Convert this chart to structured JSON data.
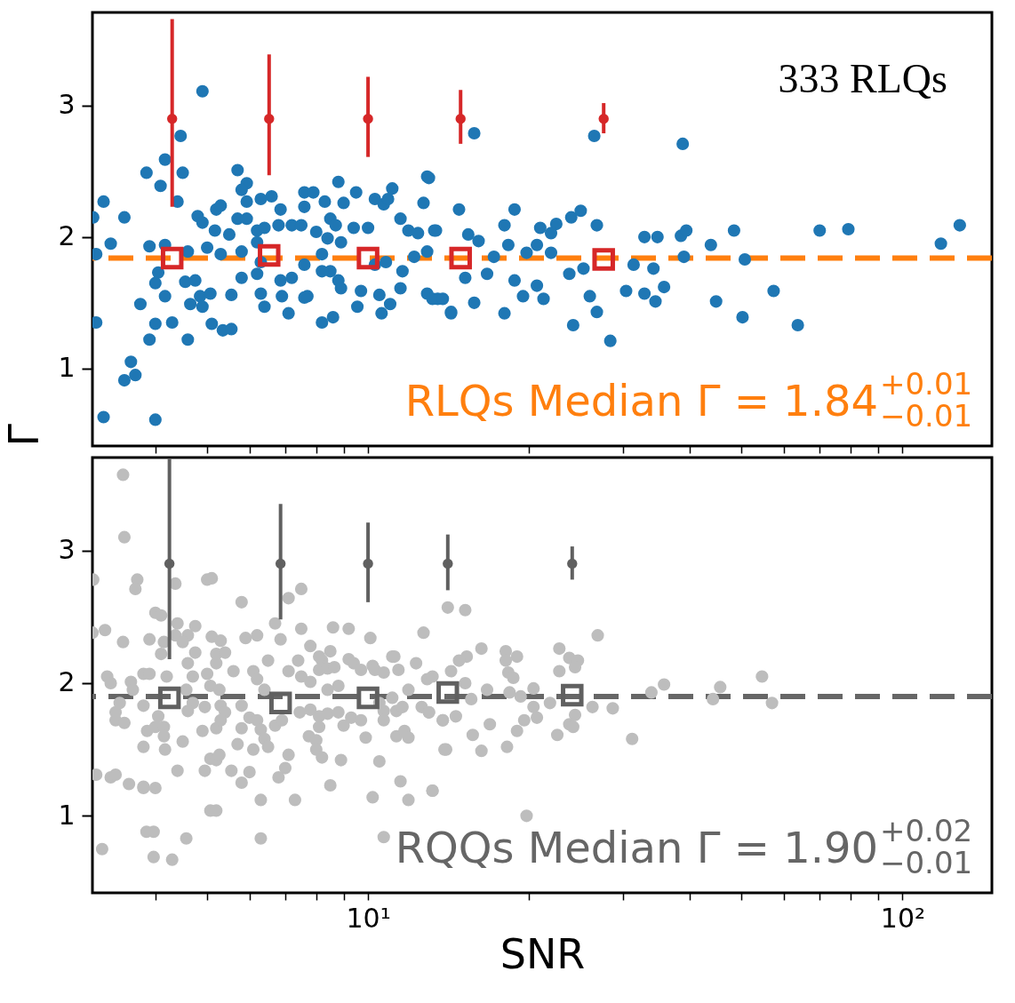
{
  "chart_data": [
    {
      "type": "scatter",
      "ylabel": "Γ",
      "log": "x",
      "xlim": [
        3.05,
        147
      ],
      "ylim": [
        0.41,
        3.71
      ],
      "tick_labels": "y",
      "grid": false,
      "xticks": [
        {
          "value": 4,
          "label": null
        },
        {
          "value": 5,
          "label": null
        },
        {
          "value": 6,
          "label": null
        },
        {
          "value": 7,
          "label": null
        },
        {
          "value": 8,
          "label": null
        },
        {
          "value": 9,
          "label": null
        },
        {
          "value": 10,
          "label": null
        },
        {
          "value": 20,
          "label": null
        },
        {
          "value": 30,
          "label": null
        },
        {
          "value": 40,
          "label": null
        },
        {
          "value": 50,
          "label": null
        },
        {
          "value": 60,
          "label": null
        },
        {
          "value": 70,
          "label": null
        },
        {
          "value": 80,
          "label": null
        },
        {
          "value": 90,
          "label": null
        },
        {
          "value": 100,
          "label": null
        }
      ],
      "yticks": [
        1,
        2,
        3
      ],
      "annotations": [
        "333 RLQs",
        "RLQs Median Γ = 1.84$^{+0.01}$$_{−0.01}$"
      ],
      "ref_lines": [
        {
          "axis": "y",
          "value": 1.84,
          "color": "#ff7f0e",
          "line_style": "dashed"
        }
      ],
      "series": [
        {
          "marker": "circle",
          "color": "#1f77b4",
          "x": [
            4.9,
            4.46,
            4.17,
            3.85,
            4.09,
            4.5,
            4.4,
            3.2,
            3.5,
            3.06,
            3.3,
            3.1,
            3.9,
            4.17,
            4.05,
            4.0,
            4.17,
            3.75,
            3.1,
            4.0,
            4.3,
            3.9,
            4.6,
            3.6,
            3.5,
            3.67,
            3.2,
            4.0,
            4.8,
            5.2,
            5.3,
            4.9,
            5.17,
            5.5,
            4.6,
            5.0,
            5.3,
            4.55,
            4.75,
            4.65,
            4.85,
            5.07,
            4.9,
            5.1,
            5.35,
            5.55,
            5.7,
            5.93,
            5.8,
            5.7,
            5.93,
            5.93,
            6.3,
            6.6,
            6.86,
            6.2,
            6.4,
            6.8,
            7.2,
            7.5,
            6.2,
            5.8,
            6.3,
            6.2,
            6.3,
            6.4,
            5.55,
            5.8,
            6.9,
            7.1,
            6.86,
            7.2,
            7.6,
            7.7,
            7.6,
            7.9,
            7.6,
            8.3,
            8.8,
            9.0,
            8.5,
            8.7,
            8.0,
            8.4,
            8.9,
            9.4,
            10.0,
            9.5,
            10.3,
            10.7,
            11.1,
            10.9,
            8.2,
            8.5,
            8.8,
            8.9,
            8.2,
            7.6,
            8.2,
            8.6,
            9.55,
            9.7,
            10.5,
            10.6,
            11.0,
            10.3,
            10.8,
            11.5,
            11.9,
            12.4,
            13.3,
            12.7,
            12.9,
            11.6,
            11.5,
            12.9,
            13.5,
            14.3,
            12.2,
            12.9,
            15.8,
            26.5,
            38.8,
            13.0,
            14.8,
            13.4,
            18.8,
            18.0,
            21.0,
            22.5,
            22.0,
            24.0,
            25.0,
            26.8,
            32.9,
            34.8,
            38.5,
            39.4,
            43.8,
            48.4,
            70.0,
            79.2,
            118,
            128,
            50.7,
            39.0,
            34.2,
            31.4,
            35.8,
            30.4,
            32.9,
            34.5,
            44.8,
            57.4,
            50.2,
            63.7,
            26.8,
            28.4,
            24.2,
            26.0,
            18.0,
            14.3,
            15.8,
            13.2,
            13.8,
            19.5,
            21.3,
            15.2,
            16.7,
            18.8,
            20.7,
            23.8,
            25.3,
            17.2,
            19.8,
            22.0,
            18.3,
            20.7,
            15.4,
            16.1
          ],
          "values": [
            3.11,
            2.77,
            2.59,
            2.49,
            2.39,
            2.49,
            2.27,
            2.27,
            2.15,
            2.15,
            1.95,
            1.87,
            1.93,
            1.94,
            1.73,
            1.65,
            1.55,
            1.49,
            1.35,
            1.34,
            1.35,
            1.22,
            1.22,
            1.05,
            0.91,
            0.95,
            0.63,
            0.61,
            2.16,
            2.21,
            2.24,
            2.11,
            2.05,
            2.02,
            1.89,
            1.92,
            1.87,
            1.66,
            1.67,
            1.49,
            1.55,
            1.57,
            1.47,
            1.34,
            1.29,
            1.3,
            2.51,
            2.41,
            2.36,
            2.14,
            2.27,
            2.14,
            2.29,
            2.31,
            2.21,
            2.05,
            2.07,
            2.09,
            2.09,
            2.09,
            1.96,
            1.89,
            1.81,
            1.72,
            1.57,
            1.47,
            1.56,
            1.69,
            1.55,
            1.42,
            1.67,
            1.69,
            1.79,
            1.55,
            2.34,
            2.34,
            2.23,
            2.27,
            2.42,
            2.26,
            2.14,
            2.09,
            2.04,
            1.99,
            1.96,
            2.07,
            2.07,
            2.34,
            2.29,
            2.25,
            2.37,
            2.29,
            1.87,
            1.74,
            1.67,
            1.61,
            1.74,
            1.54,
            1.35,
            1.39,
            1.47,
            1.59,
            1.56,
            1.42,
            1.49,
            1.79,
            1.81,
            2.14,
            2.05,
            2.03,
            2.05,
            2.26,
            2.46,
            1.74,
            1.61,
            1.57,
            1.53,
            1.43,
            1.85,
            1.89,
            2.79,
            2.77,
            2.71,
            2.45,
            2.21,
            2.05,
            2.21,
            2.09,
            2.07,
            2.1,
            2.03,
            2.15,
            2.2,
            2.09,
            2.0,
            2.0,
            2.01,
            2.05,
            1.94,
            2.05,
            2.05,
            2.06,
            1.95,
            2.09,
            1.83,
            1.85,
            1.76,
            1.79,
            1.62,
            1.59,
            1.57,
            1.51,
            1.51,
            1.59,
            1.39,
            1.33,
            1.43,
            1.21,
            1.33,
            1.55,
            1.42,
            1.42,
            1.5,
            1.53,
            1.53,
            1.55,
            1.53,
            1.69,
            1.72,
            1.67,
            1.63,
            1.72,
            1.76,
            1.85,
            1.88,
            1.88,
            1.94,
            1.94,
            2.02,
            1.97
          ]
        },
        {
          "marker": "circle",
          "color": "#d62728",
          "x": [
            4.3,
            6.53,
            10.0,
            14.9,
            27.6
          ],
          "values": [
            2.9,
            2.9,
            2.9,
            2.9,
            2.9
          ],
          "errors": [
            [
              2.23,
              3.66
            ],
            [
              2.47,
              3.39
            ],
            [
              2.61,
              3.22
            ],
            [
              2.71,
              3.12
            ],
            [
              2.79,
              3.02
            ]
          ]
        },
        {
          "marker": "square",
          "color": "#d62728",
          "x": [
            4.3,
            6.53,
            10.0,
            14.9,
            27.6
          ],
          "values": [
            1.84,
            1.86,
            1.84,
            1.84,
            1.83
          ]
        }
      ]
    },
    {
      "type": "scatter",
      "xlabel": "SNR",
      "log": "x",
      "xlim": [
        3.05,
        147
      ],
      "ylim": [
        0.42,
        3.7
      ],
      "grid": false,
      "xticks": [
        {
          "value": 4,
          "label": null
        },
        {
          "value": 5,
          "label": null
        },
        {
          "value": 6,
          "label": null
        },
        {
          "value": 7,
          "label": null
        },
        {
          "value": 8,
          "label": null
        },
        {
          "value": 9,
          "label": null
        },
        {
          "value": 10,
          "label": "10¹"
        },
        {
          "value": 20,
          "label": null
        },
        {
          "value": 30,
          "label": null
        },
        {
          "value": 40,
          "label": null
        },
        {
          "value": 50,
          "label": null
        },
        {
          "value": 60,
          "label": null
        },
        {
          "value": 70,
          "label": null
        },
        {
          "value": 80,
          "label": null
        },
        {
          "value": 90,
          "label": null
        },
        {
          "value": 100,
          "label": "10²"
        }
      ],
      "yticks": [
        1,
        2,
        3
      ],
      "annotations": [
        "RQQs Median Γ = 1.90$^{+0.02}$$_{−0.01}$"
      ],
      "ref_lines": [
        {
          "axis": "y",
          "value": 1.9,
          "color": "#666666",
          "line_style": "dashed"
        }
      ],
      "series": [
        {
          "marker": "circle",
          "color": "#bdbdbd",
          "x": [
            3.48,
            3.5,
            3.06,
            3.7,
            3.67,
            5.0,
            5.1,
            4.36,
            5.8,
            4.0,
            4.1,
            3.22,
            3.05,
            3.48,
            3.9,
            4.4,
            4.36,
            4.6,
            4.75,
            4.5,
            4.15,
            4.1,
            5.1,
            5.3,
            5.2,
            5.4,
            4.75,
            4.6,
            5.2,
            5.6,
            4.7,
            5.0,
            3.8,
            3.9,
            3.25,
            3.3,
            3.6,
            3.63,
            4.2,
            3.43,
            3.37,
            3.37,
            3.5,
            3.8,
            4.57,
            4.7,
            4.6,
            4.95,
            5.07,
            5.27,
            5.3,
            5.4,
            5.2,
            5.3,
            3.86,
            4.0,
            4.15,
            4.05,
            4.15,
            3.8,
            4.17,
            4.5,
            4.9,
            3.1,
            3.3,
            3.37,
            3.57,
            3.8,
            3.8,
            4.0,
            4.4,
            4.95,
            5.07,
            5.2,
            5.27,
            3.85,
            3.97,
            3.18,
            3.97,
            4.3,
            4.57,
            5.07,
            5.2,
            5.55,
            5.7,
            5.8,
            6.0,
            5.8,
            5.8,
            5.9,
            6.2,
            6.7,
            6.86,
            6.1,
            6.2,
            6.5,
            6.4,
            6.0,
            6.2,
            6.3,
            6.4,
            6.5,
            6.1,
            6.7,
            6.9,
            7.1,
            7.0,
            6.8,
            6.3,
            6.3,
            7.3,
            7.1,
            7.5,
            7.5,
            7.8,
            7.4,
            7.1,
            7.5,
            7.8,
            8.1,
            8.2,
            8.1,
            8.5,
            8.6,
            9.2,
            7.45,
            7.8,
            7.75,
            8.0,
            8.0,
            8.2,
            8.1,
            8.1,
            8.4,
            8.8,
            9.0,
            9.3,
            8.8,
            8.4,
            8.4,
            8.65,
            9.2,
            9.4,
            8.9,
            8.5,
            9.7,
            10.1,
            10.2,
            10.3,
            10.7,
            11.1,
            11.2,
            11.4,
            12.3,
            12.7,
            9.7,
            9.9,
            10.5,
            10.7,
            10.7,
            11.1,
            11.3,
            11.6,
            11.9,
            11.3,
            11.7,
            11.9,
            10.5,
            11.5,
            10.2,
            11.9,
            10.7,
            13.2,
            12.6,
            13.0,
            12.9,
            13.2,
            13.8,
            14.0,
            14.1,
            15.2,
            26.9,
            16.3,
            18.1,
            19.0,
            22.8,
            15.3,
            14.8,
            23.8,
            24.7,
            18.1,
            18.3,
            18.7,
            14.3,
            15.2,
            22.8,
            24.4,
            16.7,
            18.4,
            20.4,
            19.3,
            35.8,
            33.9,
            45.6,
            54.6,
            57.0,
            44.2,
            15.6,
            20.4,
            21.9,
            26.3,
            28.7,
            13.0,
            13.8,
            14.6,
            16.9,
            19.6,
            20.7,
            24.4,
            23.8,
            24.2,
            15.7,
            19.0,
            22.6,
            31.2,
            13.9,
            16.3,
            18.2,
            13.2,
            19.8
          ],
          "values": [
            3.57,
            3.1,
            2.78,
            2.78,
            2.71,
            2.78,
            2.79,
            2.75,
            2.61,
            2.53,
            2.51,
            2.4,
            2.38,
            2.31,
            2.33,
            2.45,
            2.36,
            2.36,
            2.43,
            2.31,
            2.31,
            2.22,
            2.35,
            2.32,
            2.22,
            2.23,
            2.23,
            2.15,
            2.15,
            2.09,
            2.05,
            2.07,
            2.07,
            2.07,
            2.05,
            2.0,
            2.01,
            1.95,
            2.05,
            1.85,
            1.78,
            1.72,
            1.7,
            1.83,
            1.95,
            1.85,
            1.79,
            1.82,
            1.98,
            1.95,
            1.83,
            1.78,
            1.66,
            1.72,
            1.64,
            1.67,
            1.67,
            1.75,
            1.6,
            1.52,
            1.5,
            1.56,
            1.64,
            1.31,
            1.29,
            1.31,
            1.24,
            1.22,
            1.21,
            1.21,
            1.34,
            1.34,
            1.43,
            1.42,
            1.46,
            0.88,
            0.88,
            0.75,
            0.69,
            0.67,
            0.83,
            1.04,
            1.04,
            1.34,
            1.54,
            1.25,
            1.33,
            1.66,
            1.83,
            2.34,
            2.36,
            2.45,
            2.33,
            2.09,
            2.03,
            2.17,
            1.95,
            1.74,
            1.72,
            1.65,
            1.58,
            1.52,
            1.5,
            1.68,
            1.72,
            1.46,
            1.36,
            1.29,
            1.12,
            0.83,
            1.12,
            2.64,
            2.71,
            2.41,
            2.28,
            2.17,
            2.09,
            2.05,
            2.01,
            2.1,
            2.17,
            2.2,
            2.24,
            2.42,
            2.41,
            1.78,
            1.8,
            1.6,
            1.57,
            1.5,
            1.44,
            1.75,
            1.67,
            1.77,
            1.78,
            1.68,
            1.74,
            1.98,
            1.95,
            2.11,
            2.12,
            2.18,
            2.15,
            1.42,
            1.23,
            2.1,
            2.34,
            2.13,
            2.1,
            2.08,
            2.2,
            2.2,
            2.1,
            2.15,
            2.38,
            1.72,
            1.59,
            1.85,
            1.79,
            1.72,
            1.89,
            1.79,
            1.82,
            1.95,
            1.6,
            1.64,
            1.59,
            1.41,
            1.26,
            1.14,
            1.12,
            0.84,
            1.19,
            1.82,
            1.78,
            2.03,
            2.05,
            1.72,
            1.5,
            2.57,
            2.55,
            2.36,
            2.26,
            2.24,
            2.2,
            2.26,
            2.2,
            2.17,
            2.19,
            2.17,
            2.17,
            2.08,
            2.04,
            2.09,
            2.0,
            2.09,
            2.12,
            1.95,
            1.93,
            1.96,
            1.9,
            1.99,
            1.93,
            1.97,
            2.05,
            1.85,
            1.88,
            1.88,
            1.82,
            1.85,
            1.82,
            1.81,
            1.78,
            1.72,
            1.75,
            1.69,
            1.72,
            1.74,
            1.76,
            1.69,
            1.67,
            1.61,
            1.64,
            1.61,
            1.58,
            1.5,
            1.49,
            1.52,
            1.19,
            1.0
          ]
        },
        {
          "marker": "circle",
          "color": "#606060",
          "x": [
            4.25,
            6.86,
            10.0,
            14.1,
            24.1
          ],
          "values": [
            2.9,
            2.9,
            2.9,
            2.9,
            2.9
          ],
          "errors": [
            [
              2.18,
              3.69
            ],
            [
              2.48,
              3.35
            ],
            [
              2.61,
              3.21
            ],
            [
              2.7,
              3.12
            ],
            [
              2.78,
              3.03
            ]
          ]
        },
        {
          "marker": "square",
          "color": "#606060",
          "x": [
            4.25,
            6.86,
            10.0,
            14.1,
            24.1
          ],
          "values": [
            1.89,
            1.85,
            1.89,
            1.93,
            1.91
          ]
        }
      ]
    }
  ]
}
